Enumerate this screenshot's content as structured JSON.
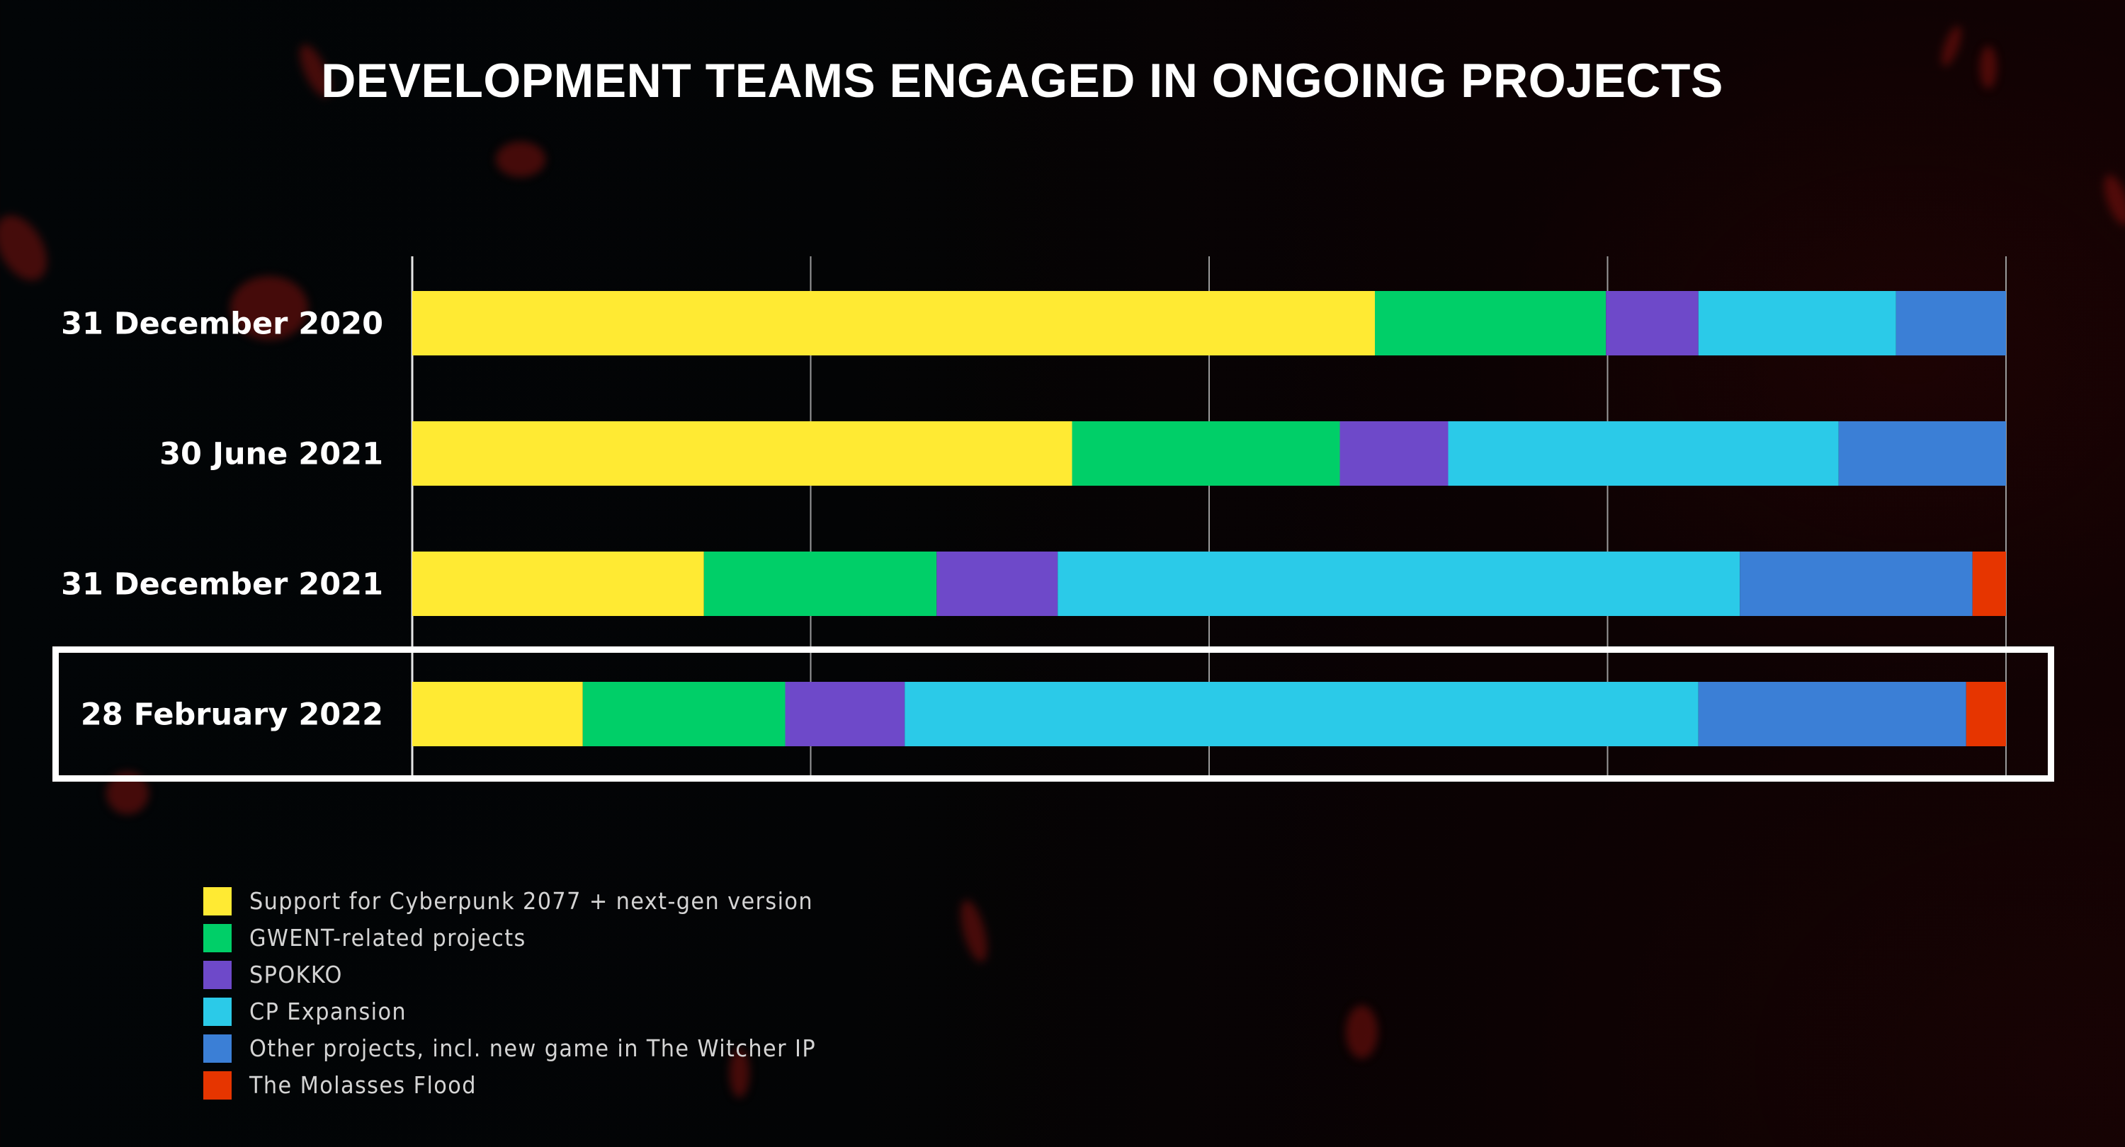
{
  "title": "DEVELOPMENT TEAMS ENGAGED IN ONGOING PROJECTS",
  "chart_data": {
    "type": "bar",
    "orientation": "horizontal",
    "stacked": true,
    "title": "DEVELOPMENT TEAMS ENGAGED IN ONGOING PROJECTS",
    "xlabel": "",
    "ylabel": "",
    "unit": "percent of development teams",
    "xlim": [
      0,
      100
    ],
    "x_gridlines": [
      0,
      25,
      50,
      75,
      100
    ],
    "grid": true,
    "x_tick_labels_shown": false,
    "categories": [
      "31 December 2020",
      "30 June 2021",
      "31 December 2021",
      "28 February 2022"
    ],
    "highlighted_category": "28 February 2022",
    "series": [
      {
        "name": "Support for Cyberpunk 2077 + next-gen version",
        "color": "#ffea33",
        "values": [
          60.4,
          41.4,
          18.3,
          10.7
        ]
      },
      {
        "name": "GWENT-related projects",
        "color": "#00cf68",
        "values": [
          14.5,
          16.8,
          14.6,
          12.7
        ]
      },
      {
        "name": "SPOKKO",
        "color": "#6e49c9",
        "values": [
          5.8,
          6.8,
          7.6,
          7.5
        ]
      },
      {
        "name": "CP Expansion",
        "color": "#2bcae8",
        "values": [
          12.4,
          24.5,
          42.8,
          49.8
        ]
      },
      {
        "name": "Other projects, incl. new game in The Witcher IP",
        "color": "#3b7fd6",
        "values": [
          6.9,
          10.5,
          14.6,
          16.8
        ]
      },
      {
        "name": "The Molasses Flood",
        "color": "#e63500",
        "values": [
          0,
          0,
          2.1,
          2.5
        ]
      }
    ],
    "legend_position": "bottom-left"
  }
}
